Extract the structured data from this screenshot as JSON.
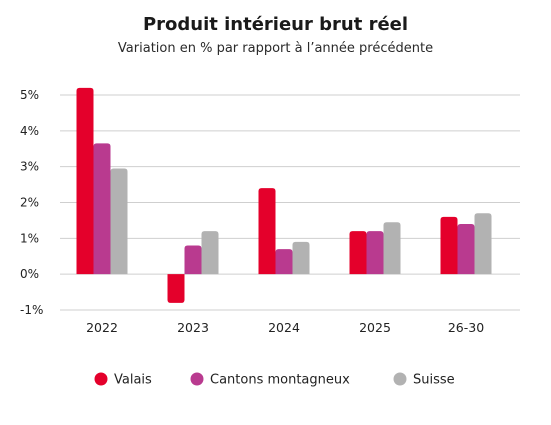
{
  "chart_data": {
    "type": "bar",
    "title": "Produit intérieur brut réel",
    "subtitle": "Variation en % par rapport à l’année précédente",
    "xlabel": "",
    "ylabel": "",
    "categories": [
      "2022",
      "2023",
      "2024",
      "2025",
      "26-30"
    ],
    "series": [
      {
        "name": "Valais",
        "color": "#e4002b",
        "values": [
          5.2,
          -0.8,
          2.4,
          1.2,
          1.6
        ]
      },
      {
        "name": "Cantons montagneux",
        "color": "#b93a8f",
        "values": [
          3.65,
          0.8,
          0.7,
          1.2,
          1.4
        ]
      },
      {
        "name": "Suisse",
        "color": "#b2b2b2",
        "values": [
          2.95,
          1.2,
          0.9,
          1.45,
          1.7
        ]
      }
    ],
    "ylim": [
      -1,
      5
    ],
    "yticks": [
      -1,
      0,
      1,
      2,
      3,
      4,
      5
    ],
    "ytick_labels": [
      "-1%",
      "0%",
      "1%",
      "2%",
      "3%",
      "4%",
      "5%"
    ],
    "grid": true,
    "legend_position": "bottom"
  }
}
